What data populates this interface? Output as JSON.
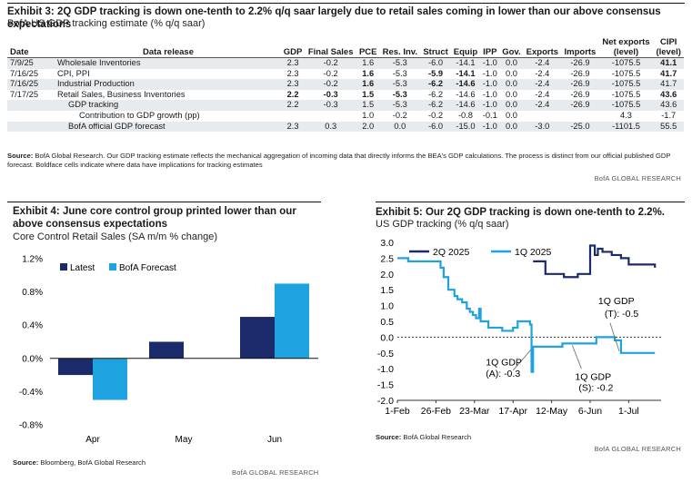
{
  "exhibit3": {
    "title": "Exhibit 3: 2Q GDP tracking is down one-tenth to 2.2% q/q saar largely due to retail sales coming in lower than our above consensus expectations",
    "subtitle": "BofA US GDP tracking estimate (% q/q saar)",
    "headers": {
      "date": "Date",
      "release": "Data release",
      "gdp": "GDP",
      "final_sales": "Final Sales",
      "pce": "PCE",
      "res_inv": "Res. Inv.",
      "struct": "Struct",
      "equip": "Equip",
      "ipp": "IPP",
      "gov": "Gov.",
      "exports": "Exports",
      "imports": "Imports",
      "net_exports_1": "Net exports",
      "net_exports_2": "(level)",
      "cipi_1": "CIPI",
      "cipi_2": "(level)"
    },
    "rows": [
      {
        "date": "7/9/25",
        "release": "Wholesale Inventories",
        "gdp": "2.3",
        "fs": "-0.2",
        "pce": "1.6",
        "ri": "-5.3",
        "st": "-6.0",
        "eq": "-14.1",
        "ipp": "-1.0",
        "gov": "0.0",
        "ex": "-2.4",
        "im": "-26.9",
        "ne": "-1075.5",
        "ci": "41.1"
      },
      {
        "date": "7/16/25",
        "release": "CPI, PPI",
        "gdp": "2.3",
        "fs": "-0.2",
        "pce": "1.6",
        "ri": "-5.3",
        "st": "-5.9",
        "eq": "-14.1",
        "ipp": "-1.0",
        "gov": "0.0",
        "ex": "-2.4",
        "im": "-26.9",
        "ne": "-1075.5",
        "ci": "41.7"
      },
      {
        "date": "7/16/25",
        "release": "Industrial Production",
        "gdp": "2.3",
        "fs": "-0.2",
        "pce": "1.6",
        "ri": "-5.3",
        "st": "-6.2",
        "eq": "-14.6",
        "ipp": "-1.0",
        "gov": "0.0",
        "ex": "-2.4",
        "im": "-26.9",
        "ne": "-1075.5",
        "ci": "41.7"
      },
      {
        "date": "7/17/25",
        "release": "Retail Sales, Business Inventories",
        "gdp": "2.2",
        "fs": "-0.3",
        "pce": "1.5",
        "ri": "-5.3",
        "st": "-6.2",
        "eq": "-14.6",
        "ipp": "-1.0",
        "gov": "0.0",
        "ex": "-2.4",
        "im": "-26.9",
        "ne": "-1075.5",
        "ci": "43.6"
      },
      {
        "date": "",
        "release": "GDP tracking",
        "gdp": "2.2",
        "fs": "-0.3",
        "pce": "1.5",
        "ri": "-5.3",
        "st": "-6.2",
        "eq": "-14.6",
        "ipp": "-1.0",
        "gov": "0.0",
        "ex": "-2.4",
        "im": "-26.9",
        "ne": "-1075.5",
        "ci": "43.6"
      },
      {
        "date": "",
        "release": "Contribution to GDP growth (pp)",
        "gdp": "",
        "fs": "",
        "pce": "1.0",
        "ri": "-0.2",
        "st": "-0.2",
        "eq": "-0.8",
        "ipp": "-0.1",
        "gov": "0.0",
        "ex": "",
        "im": "",
        "ne": "4.3",
        "ci": "-1.7"
      },
      {
        "date": "",
        "release": "BofA official GDP forecast",
        "gdp": "2.3",
        "fs": "0.3",
        "pce": "2.0",
        "ri": "0.0",
        "st": "-6.0",
        "eq": "-15.0",
        "ipp": "-1.0",
        "gov": "0.0",
        "ex": "-3.0",
        "im": "-25.0",
        "ne": "-1101.5",
        "ci": "55.5"
      }
    ],
    "source_label": "Source:",
    "source": "BofA Global Research. Our GDP tracking estimate reflects the mechanical aggregation of incoming data that directly informs the BEA's GDP calculations. The process is distinct from our official published GDP forecast. Boldface cells indicate where data have implications for tracking estimates",
    "brand": "BofA GLOBAL RESEARCH"
  },
  "exhibit4": {
    "title": "Exhibit 4: June core control group printed lower than our above consensus expectations",
    "subtitle": "Core Control Retail Sales (SA m/m % change)",
    "source_label": "Source:",
    "source": "Bloomberg, BofA Global Research",
    "brand": "BofA GLOBAL RESEARCH"
  },
  "exhibit5": {
    "title": "Exhibit 5: Our 2Q GDP tracking is down one-tenth to 2.2%.",
    "subtitle": "US GDP tracking (% q/q saar)",
    "source_label": "Source:",
    "source": "BofA Global Research",
    "brand": "BofA GLOBAL RESEARCH"
  },
  "colors": {
    "dark_navy": "#1b2a6b",
    "light_blue": "#1ea2e0"
  },
  "chart_data": [
    {
      "type": "bar",
      "title": "Exhibit 4: June core control group printed lower than our above consensus expectations",
      "subtitle": "Core Control Retail Sales (SA m/m % change)",
      "categories": [
        "Apr",
        "May",
        "Jun"
      ],
      "series": [
        {
          "name": "Latest",
          "values": [
            -0.2,
            0.2,
            0.5
          ],
          "color": "#1b2a6b"
        },
        {
          "name": "BofA Forecast",
          "values": [
            -0.5,
            null,
            0.9
          ],
          "color": "#1ea2e0"
        }
      ],
      "ylim": [
        -0.8,
        1.2
      ],
      "yticks": [
        "1.2%",
        "0.8%",
        "0.4%",
        "0.0%",
        "-0.4%",
        "-0.8%"
      ],
      "ytick_values": [
        1.2,
        0.8,
        0.4,
        0.0,
        -0.4,
        -0.8
      ],
      "legend": "top-left"
    },
    {
      "type": "line",
      "title": "Exhibit 5: Our 2Q GDP tracking is down one-tenth to 2.2%.",
      "subtitle": "US GDP tracking (% q/q saar)",
      "ylim": [
        -2.0,
        3.0
      ],
      "yticks": [
        "3.0",
        "2.5",
        "2.0",
        "1.5",
        "1.0",
        "0.5",
        "0.0",
        "-0.5",
        "-1.0",
        "-1.5",
        "-2.0"
      ],
      "ytick_values": [
        3.0,
        2.5,
        2.0,
        1.5,
        1.0,
        0.5,
        0.0,
        -0.5,
        -1.0,
        -1.5,
        -2.0
      ],
      "xticks": [
        "1-Feb",
        "26-Feb",
        "23-Mar",
        "17-Apr",
        "12-May",
        "6-Jun",
        "1-Jul"
      ],
      "xtick_dates": [
        "2025-02-01",
        "2025-02-26",
        "2025-03-23",
        "2025-04-17",
        "2025-05-12",
        "2025-06-06",
        "2025-07-01"
      ],
      "xlim": [
        "2025-02-01",
        "2025-07-22"
      ],
      "legend": "top-left",
      "series": [
        {
          "name": "2Q 2025",
          "color": "#1b2a6b",
          "step": true,
          "points": [
            [
              "2025-04-30",
              2.4
            ],
            [
              "2025-05-01",
              2.4
            ],
            [
              "2025-05-08",
              2.0
            ],
            [
              "2025-05-20",
              1.9
            ],
            [
              "2025-05-29",
              2.0
            ],
            [
              "2025-06-01",
              2.0
            ],
            [
              "2025-06-05",
              2.0
            ],
            [
              "2025-06-06",
              2.9
            ],
            [
              "2025-06-09",
              2.6
            ],
            [
              "2025-06-11",
              2.8
            ],
            [
              "2025-06-14",
              2.7
            ],
            [
              "2025-06-20",
              2.6
            ],
            [
              "2025-06-26",
              2.5
            ],
            [
              "2025-06-30",
              2.5
            ],
            [
              "2025-07-01",
              2.3
            ],
            [
              "2025-07-08",
              2.3
            ],
            [
              "2025-07-16",
              2.3
            ],
            [
              "2025-07-18",
              2.2
            ]
          ]
        },
        {
          "name": "1Q 2025",
          "color": "#1ea2e0",
          "step": true,
          "points": [
            [
              "2025-02-01",
              2.5
            ],
            [
              "2025-02-08",
              2.4
            ],
            [
              "2025-02-20",
              2.4
            ],
            [
              "2025-03-01",
              2.2
            ],
            [
              "2025-03-03",
              1.9
            ],
            [
              "2025-03-06",
              1.5
            ],
            [
              "2025-03-10",
              1.3
            ],
            [
              "2025-03-12",
              1.2
            ],
            [
              "2025-03-15",
              1.1
            ],
            [
              "2025-03-18",
              0.9
            ],
            [
              "2025-03-20",
              0.8
            ],
            [
              "2025-03-22",
              0.7
            ],
            [
              "2025-03-24",
              0.6
            ],
            [
              "2025-03-26",
              0.9
            ],
            [
              "2025-03-27",
              0.5
            ],
            [
              "2025-04-01",
              0.3
            ],
            [
              "2025-04-03",
              0.3
            ],
            [
              "2025-04-07",
              0.3
            ],
            [
              "2025-04-10",
              0.2
            ],
            [
              "2025-04-17",
              0.3
            ],
            [
              "2025-04-20",
              0.5
            ],
            [
              "2025-04-24",
              0.5
            ],
            [
              "2025-04-28",
              0.4
            ],
            [
              "2025-04-29",
              -1.1
            ],
            [
              "2025-04-30",
              -0.3
            ],
            [
              "2025-05-05",
              -0.3
            ],
            [
              "2025-05-12",
              -0.3
            ],
            [
              "2025-05-19",
              -0.2
            ],
            [
              "2025-05-29",
              -0.2
            ],
            [
              "2025-06-01",
              -0.2
            ],
            [
              "2025-06-05",
              -0.2
            ],
            [
              "2025-06-10",
              0.0
            ],
            [
              "2025-06-20",
              0.0
            ],
            [
              "2025-06-22",
              -0.1
            ],
            [
              "2025-06-26",
              -0.5
            ],
            [
              "2025-07-18",
              -0.5
            ]
          ]
        }
      ],
      "annotations": [
        {
          "lines": [
            "1Q GDP",
            "(A): -0.3"
          ],
          "date": "2025-04-30",
          "value": -0.3
        },
        {
          "lines": [
            "1Q GDP",
            "(S): -0.2"
          ],
          "date": "2025-05-29",
          "value": -0.2
        },
        {
          "lines": [
            "1Q GDP",
            "(T): -0.5"
          ],
          "date": "2025-06-26",
          "value": -0.5
        }
      ]
    }
  ]
}
